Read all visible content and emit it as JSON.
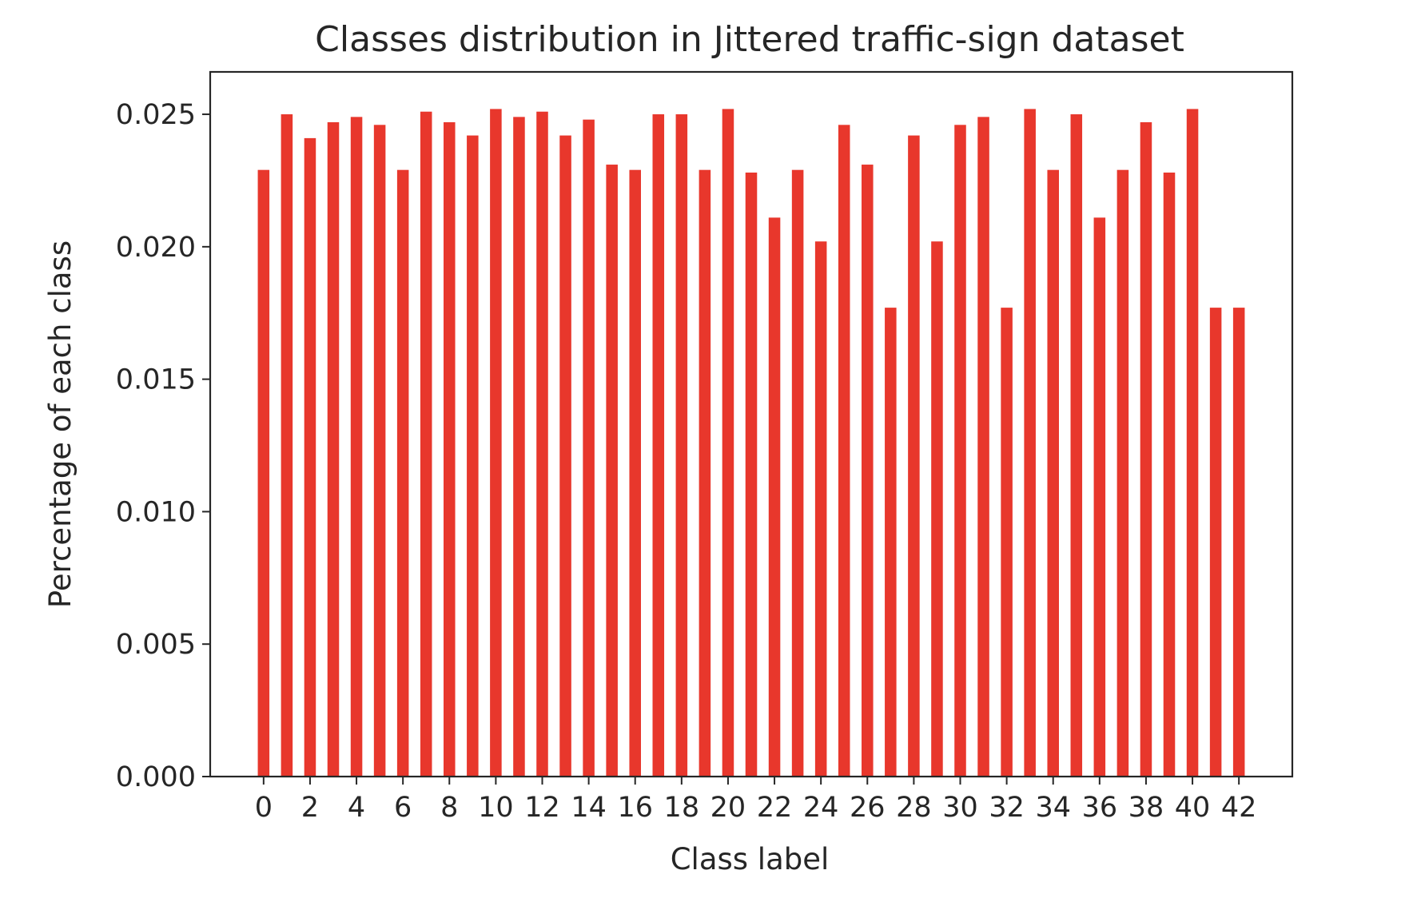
{
  "chart_data": {
    "type": "bar",
    "title": "Classes distribution in Jittered traffic-sign dataset",
    "xlabel": "Class label",
    "ylabel": "Percentage of each class",
    "ylim": [
      0,
      0.0266
    ],
    "xlim": [
      -2.3,
      44.3
    ],
    "yticks": [
      "0.000",
      "0.005",
      "0.010",
      "0.015",
      "0.020",
      "0.025"
    ],
    "xticks": [
      "0",
      "2",
      "4",
      "6",
      "8",
      "10",
      "12",
      "14",
      "16",
      "18",
      "20",
      "22",
      "24",
      "26",
      "28",
      "30",
      "32",
      "34",
      "36",
      "38",
      "40",
      "42"
    ],
    "bar_color": "#e8372c",
    "grid": false,
    "categories": [
      0,
      1,
      2,
      3,
      4,
      5,
      6,
      7,
      8,
      9,
      10,
      11,
      12,
      13,
      14,
      15,
      16,
      17,
      18,
      19,
      20,
      21,
      22,
      23,
      24,
      25,
      26,
      27,
      28,
      29,
      30,
      31,
      32,
      33,
      34,
      35,
      36,
      37,
      38,
      39,
      40,
      41,
      42
    ],
    "values": [
      0.0229,
      0.025,
      0.0241,
      0.0247,
      0.0249,
      0.0246,
      0.0229,
      0.0251,
      0.0247,
      0.0242,
      0.0252,
      0.0249,
      0.0251,
      0.0242,
      0.0248,
      0.0231,
      0.0229,
      0.025,
      0.025,
      0.0229,
      0.0252,
      0.0228,
      0.0211,
      0.0229,
      0.0202,
      0.0246,
      0.0231,
      0.0177,
      0.0242,
      0.0202,
      0.0246,
      0.0249,
      0.0177,
      0.0252,
      0.0229,
      0.025,
      0.0211,
      0.0229,
      0.0247,
      0.0228,
      0.0252,
      0.0177,
      0.0177
    ]
  }
}
